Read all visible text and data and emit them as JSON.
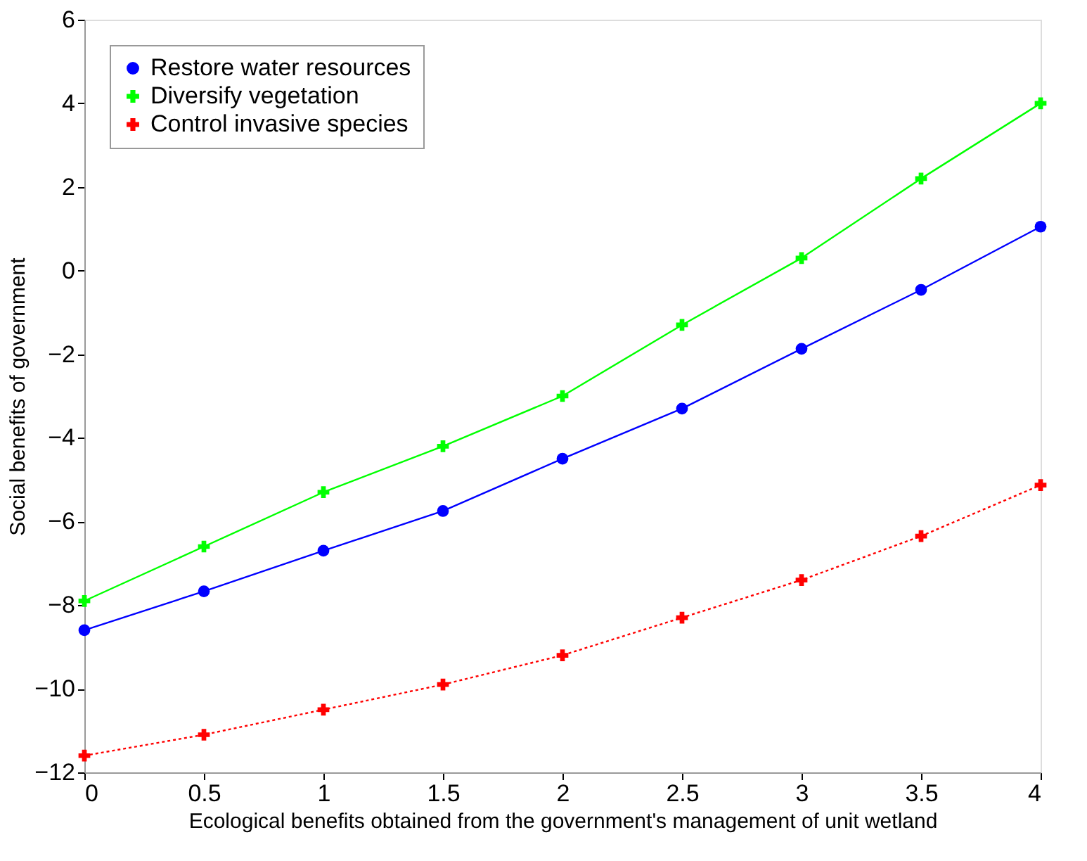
{
  "chart_data": {
    "type": "line",
    "xlabel": "Ecological benefits obtained from the government's management of unit wetland",
    "ylabel": "Social benefits of government",
    "x": [
      0,
      0.5,
      1,
      1.5,
      2,
      2.5,
      3,
      3.5,
      4
    ],
    "series": [
      {
        "name": "Restore water resources",
        "color": "#0000ff",
        "marker": "circle",
        "line_style": "solid",
        "values": [
          -8.6,
          -7.67,
          -6.7,
          -5.75,
          -4.5,
          -3.3,
          -1.87,
          -0.46,
          1.05
        ]
      },
      {
        "name": "Diversify vegetation",
        "color": "#00ff00",
        "marker": "cross",
        "line_style": "solid",
        "values": [
          -7.9,
          -6.6,
          -5.3,
          -4.2,
          -3.0,
          -1.3,
          0.3,
          2.2,
          4.0
        ]
      },
      {
        "name": "Control invasive species",
        "color": "#ff0000",
        "marker": "cross",
        "line_style": "dotted",
        "values": [
          -11.6,
          -11.1,
          -10.5,
          -9.9,
          -9.2,
          -8.3,
          -7.4,
          -6.35,
          -5.13
        ]
      }
    ],
    "xlim": [
      0,
      4
    ],
    "xticks": [
      0,
      0.5,
      1,
      1.5,
      2,
      2.5,
      3,
      3.5,
      4
    ],
    "ylim": [
      -12,
      6
    ],
    "yticks": [
      -12,
      -10,
      -8,
      -6,
      -4,
      -2,
      0,
      2,
      4,
      6
    ],
    "grid": false,
    "legend": "top left"
  }
}
